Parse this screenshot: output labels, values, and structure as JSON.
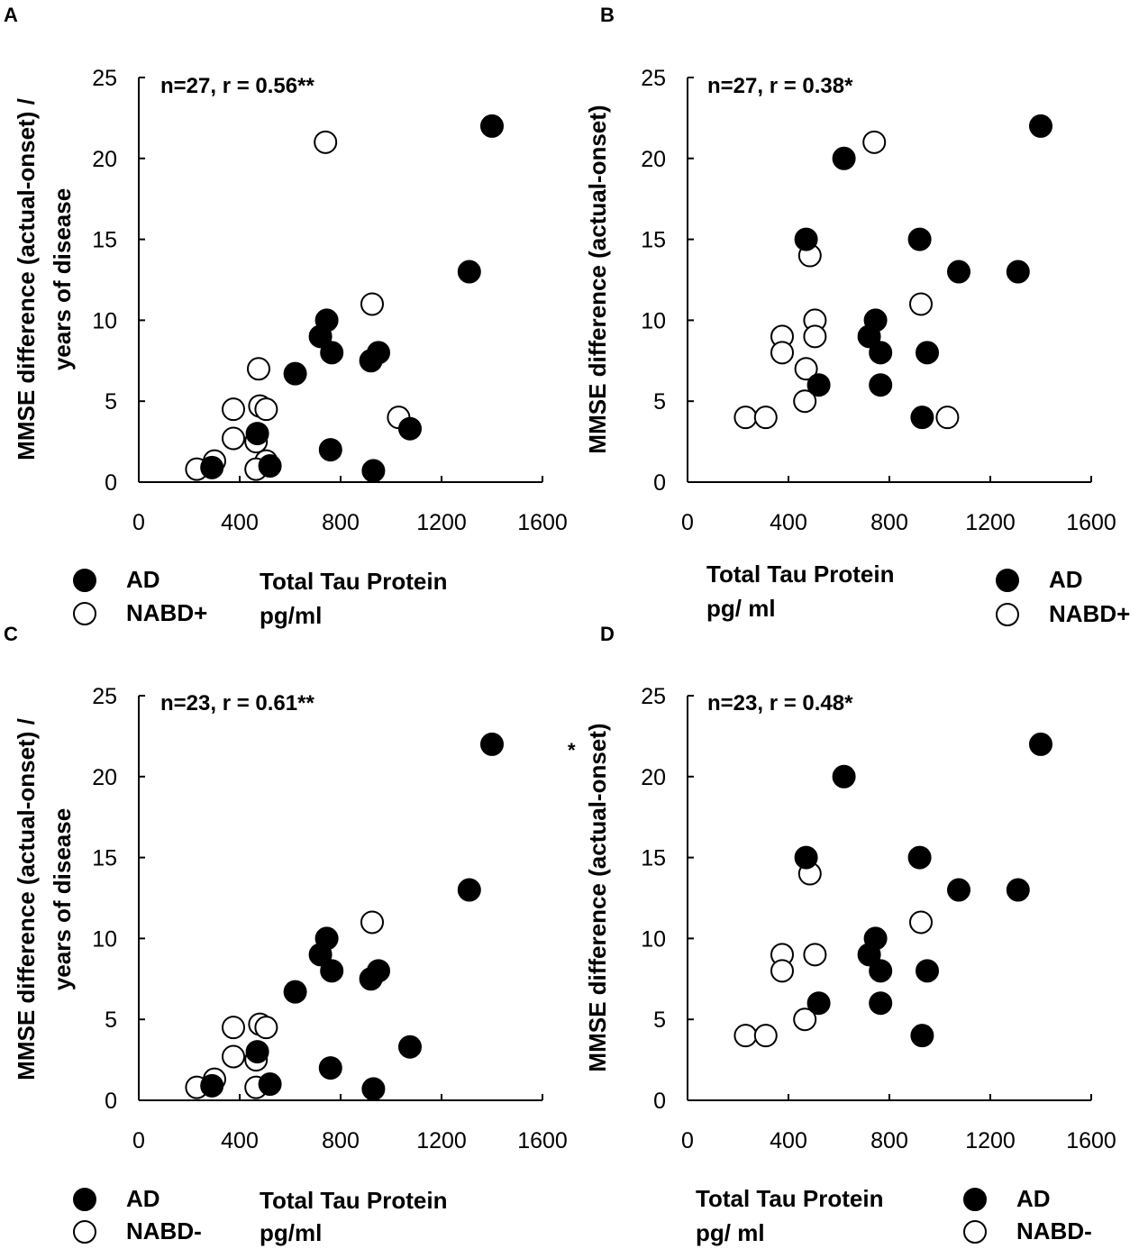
{
  "chart_data": [
    {
      "panel": "A",
      "type": "scatter",
      "annotation": "n=27, r = 0.56**",
      "ylabel": [
        "MMSE difference (actual-onset) /",
        "years of disease"
      ],
      "xlabel": [
        "Total Tau  Protein",
        "pg/ml"
      ],
      "xlim": [
        0,
        1600
      ],
      "ylim": [
        0,
        25
      ],
      "xticks": [
        "0",
        "400",
        "800",
        "1200",
        "1600"
      ],
      "yticks": [
        "0",
        "5",
        "10",
        "15",
        "20",
        "25"
      ],
      "legend": [
        "AD",
        "NABD+"
      ],
      "series": [
        {
          "name": "AD",
          "filled": true,
          "points": [
            [
              1400,
              22
            ],
            [
              1310,
              13
            ],
            [
              745,
              10
            ],
            [
              720,
              9
            ],
            [
              765,
              8
            ],
            [
              950,
              8
            ],
            [
              920,
              7.5
            ],
            [
              620,
              6.7
            ],
            [
              470,
              3
            ],
            [
              1075,
              3.3
            ],
            [
              760,
              2
            ],
            [
              520,
              1
            ],
            [
              930,
              0.7
            ],
            [
              290,
              0.9
            ]
          ]
        },
        {
          "name": "NABD+",
          "filled": false,
          "points": [
            [
              740,
              21
            ],
            [
              925,
              11
            ],
            [
              475,
              7
            ],
            [
              375,
              4.5
            ],
            [
              480,
              4.7
            ],
            [
              505,
              4.5
            ],
            [
              1030,
              4
            ],
            [
              375,
              2.7
            ],
            [
              465,
              2.5
            ],
            [
              300,
              1.3
            ],
            [
              505,
              1.3
            ],
            [
              230,
              0.8
            ],
            [
              465,
              0.8
            ]
          ]
        }
      ]
    },
    {
      "panel": "B",
      "type": "scatter",
      "annotation": "n=27, r = 0.38*",
      "ylabel": [
        "MMSE difference (actual-onset)"
      ],
      "xlabel": [
        "Total Tau Protein",
        "pg/ ml"
      ],
      "xlim": [
        0,
        1600
      ],
      "ylim": [
        0,
        25
      ],
      "xticks": [
        "0",
        "400",
        "800",
        "1200",
        "1600"
      ],
      "yticks": [
        "0",
        "5",
        "10",
        "15",
        "20",
        "25"
      ],
      "legend": [
        "AD",
        "NABD+"
      ],
      "series": [
        {
          "name": "AD",
          "filled": true,
          "points": [
            [
              1400,
              22
            ],
            [
              620,
              20
            ],
            [
              470,
              15
            ],
            [
              920,
              15
            ],
            [
              1075,
              13
            ],
            [
              1310,
              13
            ],
            [
              745,
              10
            ],
            [
              720,
              9
            ],
            [
              765,
              8
            ],
            [
              950,
              8
            ],
            [
              520,
              6
            ],
            [
              765,
              6
            ],
            [
              930,
              4
            ]
          ]
        },
        {
          "name": "NABD+",
          "filled": false,
          "points": [
            [
              740,
              21
            ],
            [
              485,
              14
            ],
            [
              925,
              11
            ],
            [
              505,
              10
            ],
            [
              375,
              9
            ],
            [
              505,
              9
            ],
            [
              375,
              8
            ],
            [
              470,
              7
            ],
            [
              465,
              5
            ],
            [
              230,
              4
            ],
            [
              310,
              4
            ],
            [
              1030,
              4
            ]
          ]
        }
      ]
    },
    {
      "panel": "C",
      "type": "scatter",
      "annotation": "n=23, r = 0.61**",
      "ylabel": [
        "MMSE difference (actual-onset) /",
        "years of disease"
      ],
      "xlabel": [
        "Total Tau  Protein",
        "pg/ml"
      ],
      "xlim": [
        0,
        1600
      ],
      "ylim": [
        0,
        25
      ],
      "xticks": [
        "0",
        "400",
        "800",
        "1200",
        "1600"
      ],
      "yticks": [
        "0",
        "5",
        "10",
        "15",
        "20",
        "25"
      ],
      "legend": [
        "AD",
        "NABD-"
      ],
      "series": [
        {
          "name": "AD",
          "filled": true,
          "points": [
            [
              1400,
              22
            ],
            [
              1310,
              13
            ],
            [
              745,
              10
            ],
            [
              720,
              9
            ],
            [
              765,
              8
            ],
            [
              950,
              8
            ],
            [
              920,
              7.5
            ],
            [
              620,
              6.7
            ],
            [
              470,
              3
            ],
            [
              1075,
              3.3
            ],
            [
              760,
              2
            ],
            [
              520,
              1
            ],
            [
              930,
              0.7
            ],
            [
              290,
              0.9
            ]
          ]
        },
        {
          "name": "NABD-",
          "filled": false,
          "points": [
            [
              925,
              11
            ],
            [
              375,
              4.5
            ],
            [
              480,
              4.7
            ],
            [
              505,
              4.5
            ],
            [
              375,
              2.7
            ],
            [
              465,
              2.5
            ],
            [
              300,
              1.3
            ],
            [
              230,
              0.8
            ],
            [
              465,
              0.8
            ]
          ]
        }
      ]
    },
    {
      "panel": "D",
      "type": "scatter",
      "annotation": "n=23, r = 0.48*",
      "ylabel": [
        "MMSE difference (actual-onset)"
      ],
      "xlabel": [
        "Total Tau Protein",
        "pg/ ml"
      ],
      "xlim": [
        0,
        1600
      ],
      "ylim": [
        0,
        25
      ],
      "xticks": [
        "0",
        "400",
        "800",
        "1200",
        "1600"
      ],
      "yticks": [
        "0",
        "5",
        "10",
        "15",
        "20",
        "25"
      ],
      "legend": [
        "AD",
        "NABD-"
      ],
      "series": [
        {
          "name": "AD",
          "filled": true,
          "points": [
            [
              1400,
              22
            ],
            [
              620,
              20
            ],
            [
              470,
              15
            ],
            [
              920,
              15
            ],
            [
              1075,
              13
            ],
            [
              1310,
              13
            ],
            [
              745,
              10
            ],
            [
              720,
              9
            ],
            [
              765,
              8
            ],
            [
              950,
              8
            ],
            [
              520,
              6
            ],
            [
              765,
              6
            ],
            [
              930,
              4
            ]
          ]
        },
        {
          "name": "NABD-",
          "filled": false,
          "points": [
            [
              485,
              14
            ],
            [
              925,
              11
            ],
            [
              375,
              9
            ],
            [
              505,
              9
            ],
            [
              375,
              8
            ],
            [
              465,
              5
            ],
            [
              230,
              4
            ],
            [
              310,
              4
            ]
          ]
        }
      ]
    }
  ],
  "stray_mark": "*"
}
